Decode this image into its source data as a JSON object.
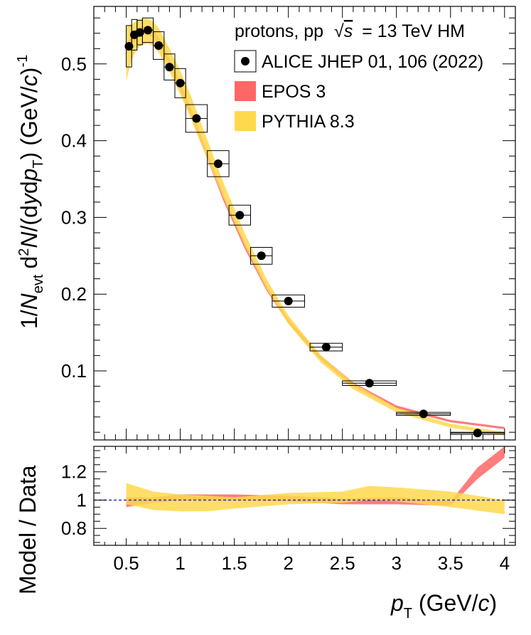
{
  "chart_data": {
    "type": "scatter",
    "header": "protons, pp √s = 13 TeV HM",
    "xlabel": "p_T (GeV/c)",
    "ylabel": "1/N_evt d²N/(dy dp_T) (GeV/c)^-1",
    "ratio_ylabel": "Model / Data",
    "xlim": [
      0.2,
      4.1
    ],
    "ylim": [
      0.01,
      0.575
    ],
    "ratio_ylim": [
      0.68,
      1.38
    ],
    "x_ticks": [
      0.5,
      1,
      1.5,
      2,
      2.5,
      3,
      3.5,
      4
    ],
    "x_tick_labels": [
      "0.5",
      "1",
      "1.5",
      "2",
      "2.5",
      "3",
      "3.5",
      "4"
    ],
    "y_ticks": [
      0.1,
      0.2,
      0.3,
      0.4,
      0.5
    ],
    "y_tick_labels": [
      "0.1",
      "0.2",
      "0.3",
      "0.4",
      "0.5"
    ],
    "ratio_ticks": [
      0.8,
      1.0,
      1.2
    ],
    "ratio_tick_labels": [
      "0.8",
      "1",
      "1.2"
    ],
    "legend_position": "top-right",
    "grid": false,
    "series": [
      {
        "name": "ALICE JHEP 01, 106 (2022)",
        "kind": "data",
        "color": "#000000",
        "points": [
          {
            "x": 0.525,
            "xlo": 0.5,
            "xhi": 0.55,
            "y": 0.523,
            "syst": 0.027
          },
          {
            "x": 0.575,
            "xlo": 0.55,
            "xhi": 0.6,
            "y": 0.538,
            "syst": 0.02
          },
          {
            "x": 0.625,
            "xlo": 0.6,
            "xhi": 0.65,
            "y": 0.541,
            "syst": 0.016
          },
          {
            "x": 0.7,
            "xlo": 0.65,
            "xhi": 0.75,
            "y": 0.544,
            "syst": 0.016
          },
          {
            "x": 0.8,
            "xlo": 0.75,
            "xhi": 0.85,
            "y": 0.524,
            "syst": 0.018
          },
          {
            "x": 0.9,
            "xlo": 0.85,
            "xhi": 0.95,
            "y": 0.496,
            "syst": 0.017
          },
          {
            "x": 1.0,
            "xlo": 0.95,
            "xhi": 1.05,
            "y": 0.475,
            "syst": 0.019
          },
          {
            "x": 1.15,
            "xlo": 1.05,
            "xhi": 1.25,
            "y": 0.429,
            "syst": 0.018
          },
          {
            "x": 1.35,
            "xlo": 1.25,
            "xhi": 1.45,
            "y": 0.37,
            "syst": 0.017
          },
          {
            "x": 1.55,
            "xlo": 1.45,
            "xhi": 1.65,
            "y": 0.303,
            "syst": 0.013
          },
          {
            "x": 1.75,
            "xlo": 1.65,
            "xhi": 1.85,
            "y": 0.25,
            "syst": 0.011
          },
          {
            "x": 2.0,
            "xlo": 1.85,
            "xhi": 2.15,
            "y": 0.191,
            "syst": 0.008
          },
          {
            "x": 2.35,
            "xlo": 2.2,
            "xhi": 2.5,
            "y": 0.131,
            "syst": 0.005
          },
          {
            "x": 2.75,
            "xlo": 2.5,
            "xhi": 3.0,
            "y": 0.084,
            "syst": 0.003
          },
          {
            "x": 3.25,
            "xlo": 3.0,
            "xhi": 3.5,
            "y": 0.044,
            "syst": 0.002
          },
          {
            "x": 3.75,
            "xlo": 3.5,
            "xhi": 4.0,
            "y": 0.019,
            "syst": 0.001
          }
        ]
      },
      {
        "name": "EPOS 3",
        "kind": "band",
        "color": "#ff6666",
        "x": [
          0.5,
          0.55,
          0.6,
          0.65,
          0.7,
          0.75,
          0.8,
          0.9,
          1.0,
          1.1,
          1.2,
          1.4,
          1.6,
          1.8,
          2.0,
          2.3,
          2.6,
          3.0,
          3.5,
          4.0
        ],
        "ylo": [
          0.512,
          0.525,
          0.533,
          0.538,
          0.539,
          0.534,
          0.525,
          0.497,
          0.466,
          0.431,
          0.394,
          0.321,
          0.258,
          0.204,
          0.162,
          0.114,
          0.08,
          0.051,
          0.033,
          0.024
        ],
        "yhi": [
          0.524,
          0.537,
          0.545,
          0.549,
          0.549,
          0.544,
          0.535,
          0.507,
          0.476,
          0.441,
          0.404,
          0.33,
          0.266,
          0.211,
          0.168,
          0.12,
          0.085,
          0.055,
          0.036,
          0.027
        ],
        "ratio_x": [
          0.5,
          0.75,
          1.0,
          1.5,
          2.0,
          2.5,
          3.0,
          3.5,
          3.75,
          4.0
        ],
        "ratio_lo": [
          0.95,
          0.98,
          1.0,
          1.0,
          0.99,
          0.97,
          0.97,
          0.96,
          1.15,
          1.3
        ],
        "ratio_hi": [
          1.02,
          1.02,
          1.04,
          1.04,
          1.03,
          1.01,
          1.02,
          0.99,
          1.23,
          1.38
        ]
      },
      {
        "name": "PYTHIA 8.3",
        "kind": "band",
        "color": "#ffd84d",
        "x": [
          0.5,
          0.55,
          0.6,
          0.65,
          0.7,
          0.75,
          0.8,
          0.9,
          1.0,
          1.1,
          1.2,
          1.4,
          1.6,
          1.8,
          2.0,
          2.3,
          2.6,
          3.0,
          3.5,
          4.0
        ],
        "ylo": [
          0.478,
          0.505,
          0.52,
          0.525,
          0.527,
          0.523,
          0.515,
          0.49,
          0.46,
          0.428,
          0.393,
          0.325,
          0.262,
          0.206,
          0.161,
          0.111,
          0.076,
          0.046,
          0.026,
          0.016
        ],
        "yhi": [
          0.548,
          0.552,
          0.556,
          0.559,
          0.559,
          0.555,
          0.547,
          0.52,
          0.491,
          0.458,
          0.42,
          0.345,
          0.278,
          0.219,
          0.172,
          0.12,
          0.084,
          0.052,
          0.031,
          0.02
        ],
        "ratio_x": [
          0.5,
          0.75,
          1.0,
          1.25,
          1.5,
          2.0,
          2.5,
          2.75,
          3.0,
          3.5,
          4.0
        ],
        "ratio_lo": [
          0.97,
          0.93,
          0.92,
          0.92,
          0.94,
          0.97,
          0.98,
          1.0,
          0.99,
          0.95,
          0.9
        ],
        "ratio_hi": [
          1.12,
          1.06,
          1.04,
          1.03,
          1.02,
          1.05,
          1.06,
          1.1,
          1.09,
          1.06,
          1.0
        ]
      }
    ]
  },
  "legend": {
    "header_prefix": "protons, pp",
    "header_sqrt_symbol": "√",
    "header_var": "s",
    "header_suffix": "= 13 TeV HM",
    "entries": [
      {
        "label": "ALICE JHEP 01, 106 (2022)"
      },
      {
        "label": "EPOS 3"
      },
      {
        "label": "PYTHIA 8.3"
      }
    ]
  },
  "labels": {
    "y_prefix": "1/",
    "y_N": "N",
    "y_evt": "evt",
    "y_d2": "d",
    "y_sup2": "2",
    "y_N2": "N",
    "y_mid": "/(d",
    "y_yvar": "y",
    "y_dp": "d",
    "y_p": "p",
    "y_T": "T",
    "y_close": ") (GeV/",
    "y_c": "c",
    "y_end": ")",
    "y_sup": "-1",
    "x_p": "p",
    "x_T": "T",
    "x_unit": " (GeV/",
    "x_c": "c",
    "x_end": ")",
    "ratio": "Model / Data"
  }
}
